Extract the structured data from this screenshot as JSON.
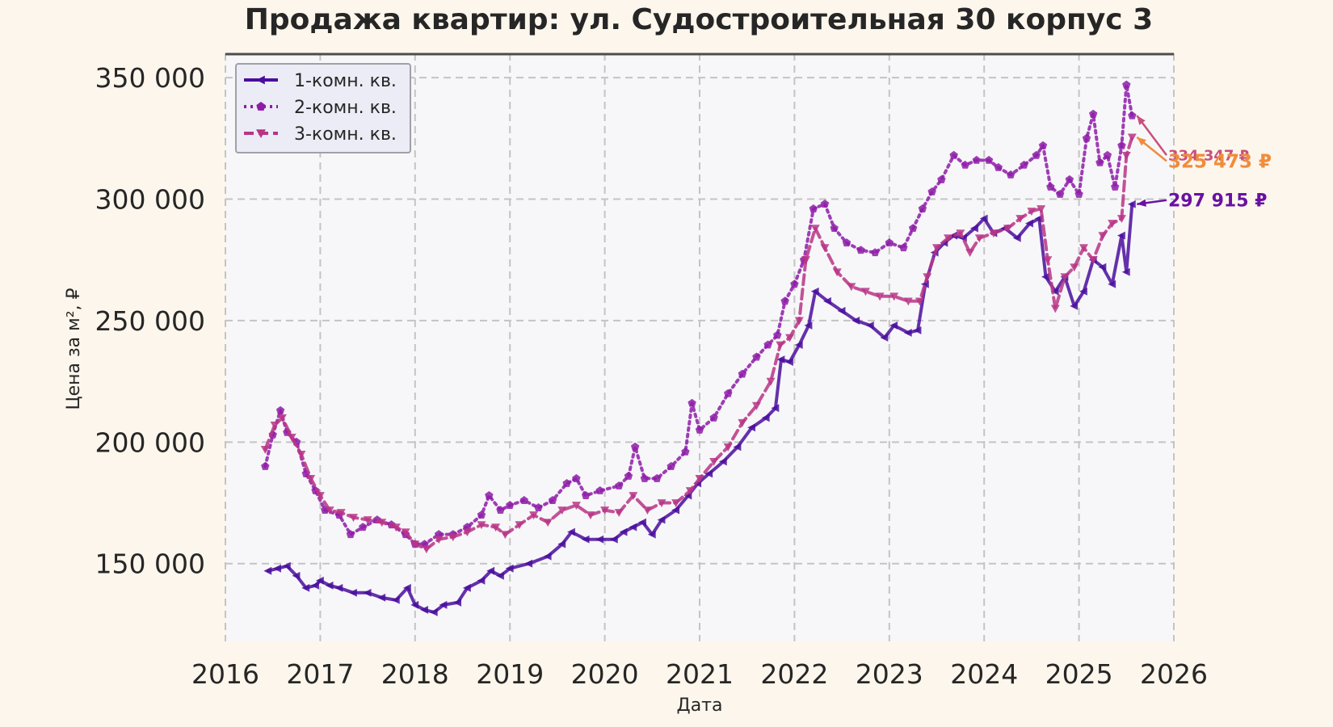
{
  "chart_data": {
    "type": "line",
    "title": "Продажа квартир: ул. Судостроительная 30 корпус 3",
    "xlabel": "Дата",
    "ylabel": "Цена за м², ₽",
    "xlim": [
      2016,
      2026
    ],
    "ylim": [
      118000,
      360000
    ],
    "x_ticks": [
      "2016",
      "2017",
      "2018",
      "2019",
      "2020",
      "2021",
      "2022",
      "2023",
      "2024",
      "2025",
      "2026"
    ],
    "y_ticks": [
      {
        "value": 150000,
        "label": "150 000"
      },
      {
        "value": 200000,
        "label": "200 000"
      },
      {
        "value": 250000,
        "label": "250 000"
      },
      {
        "value": 300000,
        "label": "300 000"
      },
      {
        "value": 350000,
        "label": "350 000"
      }
    ],
    "grid": true,
    "legend_position": "top-left",
    "series": [
      {
        "name": "1-комн. кв.",
        "color": "#4a0e9e",
        "marker": "triangle-left",
        "line_style": "solid",
        "points": [
          [
            2016.45,
            147000
          ],
          [
            2016.55,
            148000
          ],
          [
            2016.65,
            149000
          ],
          [
            2016.75,
            145000
          ],
          [
            2016.85,
            140000
          ],
          [
            2016.95,
            141000
          ],
          [
            2017.0,
            143000
          ],
          [
            2017.1,
            141000
          ],
          [
            2017.2,
            140000
          ],
          [
            2017.35,
            138000
          ],
          [
            2017.5,
            138000
          ],
          [
            2017.65,
            136000
          ],
          [
            2017.8,
            135000
          ],
          [
            2017.92,
            140000
          ],
          [
            2018.0,
            133000
          ],
          [
            2018.1,
            131000
          ],
          [
            2018.2,
            130000
          ],
          [
            2018.3,
            133000
          ],
          [
            2018.45,
            134000
          ],
          [
            2018.55,
            140000
          ],
          [
            2018.7,
            143000
          ],
          [
            2018.8,
            147000
          ],
          [
            2018.9,
            145000
          ],
          [
            2019.0,
            148000
          ],
          [
            2019.2,
            150000
          ],
          [
            2019.4,
            153000
          ],
          [
            2019.55,
            158000
          ],
          [
            2019.65,
            163000
          ],
          [
            2019.8,
            160000
          ],
          [
            2019.95,
            160000
          ],
          [
            2020.1,
            160000
          ],
          [
            2020.2,
            163000
          ],
          [
            2020.3,
            165000
          ],
          [
            2020.4,
            167000
          ],
          [
            2020.5,
            162000
          ],
          [
            2020.6,
            168000
          ],
          [
            2020.75,
            172000
          ],
          [
            2020.88,
            178000
          ],
          [
            2020.98,
            183000
          ],
          [
            2021.1,
            187000
          ],
          [
            2021.25,
            192000
          ],
          [
            2021.4,
            198000
          ],
          [
            2021.55,
            206000
          ],
          [
            2021.7,
            210000
          ],
          [
            2021.8,
            214000
          ],
          [
            2021.86,
            234000
          ],
          [
            2021.95,
            233000
          ],
          [
            2022.05,
            240000
          ],
          [
            2022.15,
            248000
          ],
          [
            2022.22,
            262000
          ],
          [
            2022.35,
            258000
          ],
          [
            2022.5,
            254000
          ],
          [
            2022.65,
            250000
          ],
          [
            2022.8,
            248000
          ],
          [
            2022.95,
            243000
          ],
          [
            2023.05,
            248000
          ],
          [
            2023.2,
            245000
          ],
          [
            2023.3,
            246000
          ],
          [
            2023.38,
            265000
          ],
          [
            2023.48,
            278000
          ],
          [
            2023.58,
            282000
          ],
          [
            2023.68,
            285000
          ],
          [
            2023.78,
            284000
          ],
          [
            2023.9,
            288000
          ],
          [
            2024.0,
            292000
          ],
          [
            2024.1,
            286000
          ],
          [
            2024.22,
            288000
          ],
          [
            2024.35,
            284000
          ],
          [
            2024.48,
            290000
          ],
          [
            2024.58,
            292000
          ],
          [
            2024.65,
            268000
          ],
          [
            2024.75,
            262000
          ],
          [
            2024.85,
            268000
          ],
          [
            2024.95,
            256000
          ],
          [
            2025.05,
            262000
          ],
          [
            2025.15,
            275000
          ],
          [
            2025.25,
            272000
          ],
          [
            2025.35,
            265000
          ],
          [
            2025.45,
            285000
          ],
          [
            2025.5,
            270000
          ],
          [
            2025.56,
            297915
          ]
        ]
      },
      {
        "name": "2-комн. кв.",
        "color": "#8e1ca8",
        "marker": "pentagon",
        "line_style": "dotted",
        "points": [
          [
            2016.42,
            190000
          ],
          [
            2016.5,
            203000
          ],
          [
            2016.58,
            213000
          ],
          [
            2016.65,
            204000
          ],
          [
            2016.75,
            200000
          ],
          [
            2016.85,
            187000
          ],
          [
            2016.95,
            180000
          ],
          [
            2017.05,
            172000
          ],
          [
            2017.2,
            170000
          ],
          [
            2017.32,
            162000
          ],
          [
            2017.45,
            165000
          ],
          [
            2017.6,
            168000
          ],
          [
            2017.75,
            166000
          ],
          [
            2017.9,
            162000
          ],
          [
            2018.0,
            158000
          ],
          [
            2018.1,
            158000
          ],
          [
            2018.25,
            162000
          ],
          [
            2018.4,
            162000
          ],
          [
            2018.55,
            165000
          ],
          [
            2018.7,
            170000
          ],
          [
            2018.78,
            178000
          ],
          [
            2018.9,
            172000
          ],
          [
            2019.0,
            174000
          ],
          [
            2019.15,
            176000
          ],
          [
            2019.3,
            173000
          ],
          [
            2019.45,
            176000
          ],
          [
            2019.6,
            183000
          ],
          [
            2019.7,
            185000
          ],
          [
            2019.8,
            178000
          ],
          [
            2019.95,
            180000
          ],
          [
            2020.15,
            182000
          ],
          [
            2020.25,
            186000
          ],
          [
            2020.32,
            198000
          ],
          [
            2020.42,
            185000
          ],
          [
            2020.55,
            185000
          ],
          [
            2020.7,
            190000
          ],
          [
            2020.85,
            196000
          ],
          [
            2020.92,
            216000
          ],
          [
            2021.0,
            205000
          ],
          [
            2021.15,
            210000
          ],
          [
            2021.3,
            220000
          ],
          [
            2021.45,
            228000
          ],
          [
            2021.6,
            235000
          ],
          [
            2021.72,
            240000
          ],
          [
            2021.82,
            244000
          ],
          [
            2021.9,
            258000
          ],
          [
            2022.0,
            265000
          ],
          [
            2022.1,
            275000
          ],
          [
            2022.2,
            296000
          ],
          [
            2022.32,
            298000
          ],
          [
            2022.42,
            288000
          ],
          [
            2022.55,
            282000
          ],
          [
            2022.7,
            279000
          ],
          [
            2022.85,
            278000
          ],
          [
            2023.0,
            282000
          ],
          [
            2023.15,
            280000
          ],
          [
            2023.25,
            288000
          ],
          [
            2023.35,
            296000
          ],
          [
            2023.45,
            303000
          ],
          [
            2023.55,
            308000
          ],
          [
            2023.68,
            318000
          ],
          [
            2023.8,
            314000
          ],
          [
            2023.92,
            316000
          ],
          [
            2024.05,
            316000
          ],
          [
            2024.15,
            313000
          ],
          [
            2024.28,
            310000
          ],
          [
            2024.42,
            314000
          ],
          [
            2024.55,
            318000
          ],
          [
            2024.62,
            322000
          ],
          [
            2024.7,
            305000
          ],
          [
            2024.8,
            302000
          ],
          [
            2024.9,
            308000
          ],
          [
            2025.0,
            302000
          ],
          [
            2025.08,
            325000
          ],
          [
            2025.15,
            335000
          ],
          [
            2025.22,
            315000
          ],
          [
            2025.3,
            318000
          ],
          [
            2025.38,
            305000
          ],
          [
            2025.45,
            322000
          ],
          [
            2025.5,
            347000
          ],
          [
            2025.56,
            334347
          ]
        ]
      },
      {
        "name": "3-комн. кв.",
        "color": "#b83586",
        "marker": "triangle-down",
        "line_style": "dashed",
        "points": [
          [
            2016.42,
            197000
          ],
          [
            2016.52,
            207000
          ],
          [
            2016.6,
            210000
          ],
          [
            2016.7,
            202000
          ],
          [
            2016.8,
            195000
          ],
          [
            2016.9,
            185000
          ],
          [
            2017.0,
            178000
          ],
          [
            2017.1,
            172000
          ],
          [
            2017.22,
            171000
          ],
          [
            2017.35,
            169000
          ],
          [
            2017.5,
            168000
          ],
          [
            2017.65,
            167000
          ],
          [
            2017.8,
            165000
          ],
          [
            2017.9,
            163000
          ],
          [
            2018.0,
            158000
          ],
          [
            2018.12,
            156000
          ],
          [
            2018.25,
            160000
          ],
          [
            2018.4,
            161000
          ],
          [
            2018.55,
            163000
          ],
          [
            2018.7,
            166000
          ],
          [
            2018.85,
            165000
          ],
          [
            2018.95,
            162000
          ],
          [
            2019.1,
            166000
          ],
          [
            2019.25,
            170000
          ],
          [
            2019.4,
            167000
          ],
          [
            2019.55,
            172000
          ],
          [
            2019.7,
            174000
          ],
          [
            2019.85,
            170000
          ],
          [
            2020.0,
            172000
          ],
          [
            2020.15,
            171000
          ],
          [
            2020.3,
            178000
          ],
          [
            2020.45,
            172000
          ],
          [
            2020.6,
            175000
          ],
          [
            2020.75,
            175000
          ],
          [
            2020.9,
            180000
          ],
          [
            2021.0,
            185000
          ],
          [
            2021.15,
            192000
          ],
          [
            2021.3,
            198000
          ],
          [
            2021.45,
            208000
          ],
          [
            2021.6,
            215000
          ],
          [
            2021.75,
            225000
          ],
          [
            2021.85,
            240000
          ],
          [
            2021.95,
            243000
          ],
          [
            2022.05,
            250000
          ],
          [
            2022.12,
            275000
          ],
          [
            2022.22,
            288000
          ],
          [
            2022.32,
            280000
          ],
          [
            2022.45,
            270000
          ],
          [
            2022.6,
            264000
          ],
          [
            2022.75,
            262000
          ],
          [
            2022.9,
            260000
          ],
          [
            2023.05,
            260000
          ],
          [
            2023.2,
            258000
          ],
          [
            2023.32,
            258000
          ],
          [
            2023.4,
            268000
          ],
          [
            2023.5,
            280000
          ],
          [
            2023.62,
            284000
          ],
          [
            2023.75,
            286000
          ],
          [
            2023.85,
            278000
          ],
          [
            2023.95,
            284000
          ],
          [
            2024.1,
            286000
          ],
          [
            2024.25,
            288000
          ],
          [
            2024.38,
            292000
          ],
          [
            2024.5,
            295000
          ],
          [
            2024.6,
            296000
          ],
          [
            2024.67,
            275000
          ],
          [
            2024.75,
            255000
          ],
          [
            2024.85,
            268000
          ],
          [
            2024.95,
            272000
          ],
          [
            2025.05,
            280000
          ],
          [
            2025.15,
            275000
          ],
          [
            2025.25,
            285000
          ],
          [
            2025.35,
            290000
          ],
          [
            2025.45,
            292000
          ],
          [
            2025.5,
            318000
          ],
          [
            2025.56,
            325473
          ]
        ]
      }
    ],
    "annotations": [
      {
        "text": "334 347 ₽",
        "color": "#c94f7c",
        "x": 2025.56,
        "y": 334347,
        "label_y": 316000,
        "size": 18
      },
      {
        "text": "325 473 ₽",
        "color": "#f08c3c",
        "x": 2025.56,
        "y": 325473,
        "label_y": 313000,
        "size": 23
      },
      {
        "text": "297 915 ₽",
        "color": "#6a11a3",
        "x": 2025.56,
        "y": 297915,
        "label_y": 297000,
        "size": 22
      }
    ]
  }
}
